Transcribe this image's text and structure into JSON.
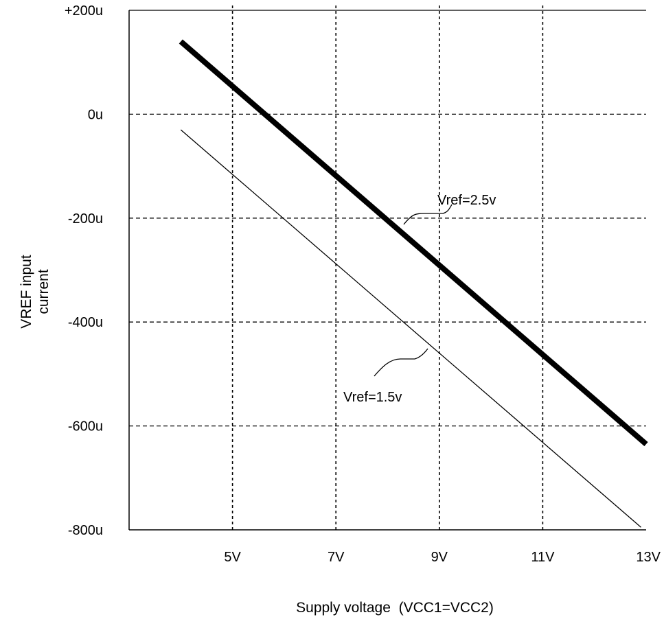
{
  "chart_data": {
    "type": "line",
    "xlabel": "Supply voltage  (VCC1=VCC2)",
    "ylabel": [
      "VREF input",
      "current"
    ],
    "xlim": [
      3,
      13
    ],
    "ylim": [
      -800,
      200
    ],
    "x_ticks": [
      5,
      7,
      9,
      11,
      13
    ],
    "x_tick_labels": [
      "5V",
      "7V",
      "9V",
      "11V",
      "13V"
    ],
    "y_ticks": [
      200,
      0,
      -200,
      -400,
      -600,
      -800
    ],
    "y_tick_labels": [
      "+200u",
      "0u",
      "-200u",
      "-400u",
      "-600u",
      "-800u"
    ],
    "grid": true,
    "series": [
      {
        "name": "Vref=2.5v",
        "x": [
          4,
          13
        ],
        "y": [
          140,
          -635
        ],
        "line_weight": "thick"
      },
      {
        "name": "Vref=1.5v",
        "x": [
          4,
          12.9
        ],
        "y": [
          -30,
          -795
        ],
        "line_weight": "thin"
      }
    ],
    "annotations": [
      {
        "text": "Vref=2.5v",
        "series": 0
      },
      {
        "text": "Vref=1.5v",
        "series": 1
      }
    ]
  }
}
